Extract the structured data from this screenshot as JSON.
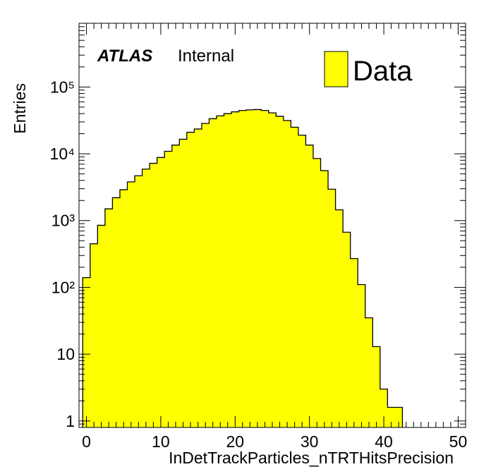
{
  "chart_data": {
    "type": "bar",
    "xlabel": "InDetTrackParticles_nTRTHitsPrecision",
    "ylabel": "Entries",
    "xlim": [
      -1,
      51
    ],
    "ylim": [
      0.8,
      900000
    ],
    "log_y": true,
    "x_ticks": [
      "0",
      "10",
      "20",
      "30",
      "40",
      "50"
    ],
    "y_ticks": [
      "1",
      "10",
      "10²",
      "10³",
      "10⁴",
      "10⁵"
    ],
    "bin_edges_start": -0.5,
    "bin_width": 1,
    "series": [
      {
        "name": "Data",
        "color": "#ffff00",
        "values": [
          140,
          450,
          850,
          1500,
          2200,
          2900,
          3800,
          4700,
          5900,
          7200,
          8800,
          10900,
          13500,
          16500,
          21000,
          23500,
          28500,
          33500,
          37000,
          40000,
          42500,
          44500,
          45500,
          46000,
          44500,
          41000,
          36500,
          31500,
          25000,
          19000,
          13500,
          8500,
          5600,
          2950,
          1450,
          670,
          270,
          110,
          35,
          13,
          3,
          1.6,
          1.6,
          0,
          0,
          0,
          0,
          0,
          0,
          0,
          0,
          0
        ]
      }
    ],
    "annotations": {
      "experiment": "ATLAS",
      "label": "Internal"
    },
    "legend": {
      "position": "top-right",
      "entries": [
        "Data"
      ]
    }
  }
}
